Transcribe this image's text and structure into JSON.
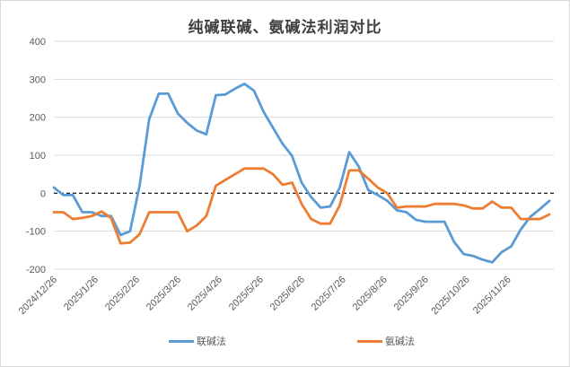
{
  "chart_data": {
    "type": "line",
    "title": "纯碱联碱、氨碱法利润对比",
    "xlabel": "",
    "ylabel": "",
    "ylim": [
      -200,
      400
    ],
    "yticks": [
      400,
      300,
      200,
      100,
      0,
      -100,
      -200
    ],
    "xtick_labels": [
      "2024/12/26",
      "2025/1/26",
      "2025/2/26",
      "2025/3/26",
      "2025/4/26",
      "2025/5/26",
      "2025/6/26",
      "2025/7/26",
      "2025/8/26",
      "2025/9/26",
      "2025/10/26",
      "2025/11/26"
    ],
    "grid": "horizontal",
    "zero_line": "dashed",
    "legend_position": "bottom",
    "x_note": "Weekly observations from 2024/12/26 through early December 2025 (53 points)",
    "series": [
      {
        "name": "联碱法",
        "color": "#5B9BD5",
        "values": [
          15,
          -5,
          -5,
          -50,
          -50,
          -60,
          -60,
          -110,
          -100,
          20,
          195,
          262,
          262,
          210,
          185,
          165,
          155,
          258,
          260,
          275,
          288,
          270,
          215,
          172,
          130,
          98,
          28,
          -10,
          -38,
          -35,
          15,
          108,
          70,
          8,
          -5,
          -20,
          -45,
          -50,
          -70,
          -75,
          -75,
          -75,
          -128,
          -160,
          -165,
          -175,
          -182,
          -155,
          -140,
          -95,
          -62,
          -42,
          -20
        ]
      },
      {
        "name": "氨碱法",
        "color": "#ED7D31",
        "values": [
          -50,
          -50,
          -68,
          -65,
          -60,
          -48,
          -65,
          -132,
          -130,
          -108,
          -50,
          -50,
          -50,
          -50,
          -100,
          -85,
          -60,
          20,
          35,
          50,
          65,
          65,
          65,
          50,
          22,
          28,
          -28,
          -68,
          -80,
          -80,
          -32,
          60,
          60,
          38,
          15,
          0,
          -38,
          -35,
          -35,
          -35,
          -28,
          -28,
          -28,
          -32,
          -40,
          -40,
          -22,
          -38,
          -38,
          -68,
          -68,
          -68,
          -56
        ]
      }
    ]
  },
  "legend": {
    "items": [
      {
        "label": "联碱法",
        "color": "#5B9BD5"
      },
      {
        "label": "氨碱法",
        "color": "#ED7D31"
      }
    ]
  }
}
